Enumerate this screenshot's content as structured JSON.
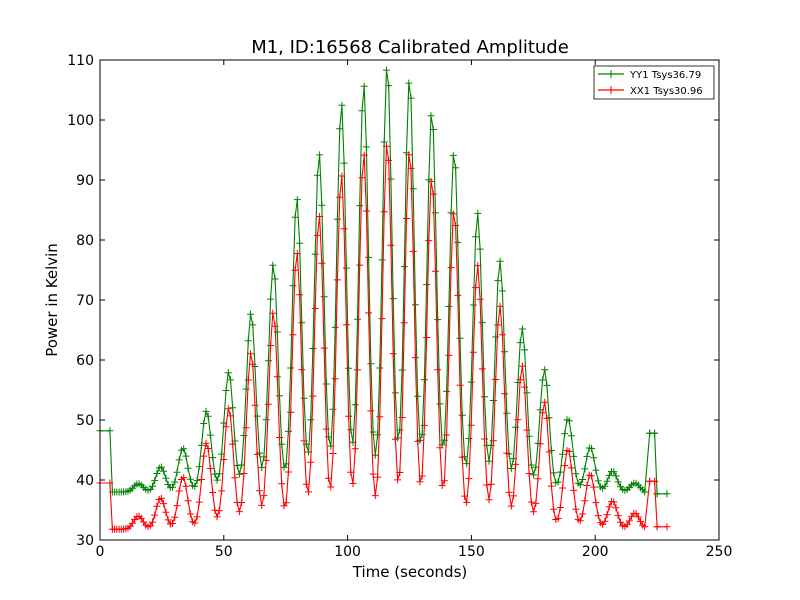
{
  "chart_data": {
    "type": "line",
    "title": "M1, ID:16568 Calibrated Amplitude",
    "xlabel": "Time (seconds)",
    "ylabel": "Power in Kelvin",
    "xlim": [
      0,
      250
    ],
    "ylim": [
      30,
      110
    ],
    "xticks": [
      "0",
      "50",
      "100",
      "150",
      "200",
      "250"
    ],
    "yticks": [
      "30",
      "40",
      "50",
      "60",
      "70",
      "80",
      "90",
      "100",
      "110"
    ],
    "grid": false,
    "legend_position": "top-right",
    "marker": "plus",
    "series": [
      {
        "name": "YY1 Tsys36.79",
        "color": "#008000",
        "baseline": 38,
        "segments": [
          {
            "x": [
              0,
              4
            ],
            "y": [
              48.2,
              48.2
            ]
          },
          {
            "x": [
              4,
              5
            ],
            "y": [
              48.2,
              37.8
            ]
          },
          {
            "x": [
              220,
              222
            ],
            "y": [
              38,
              47.8
            ]
          },
          {
            "x": [
              222,
              224
            ],
            "y": [
              47.8,
              47.8
            ]
          },
          {
            "x": [
              224,
              225
            ],
            "y": [
              47.8,
              37.7
            ]
          },
          {
            "x": [
              225,
              229
            ],
            "y": [
              37.7,
              37.7
            ]
          }
        ],
        "peaks": [
          {
            "x": 15.5,
            "y": 39.4
          },
          {
            "x": 24.5,
            "y": 42.2
          },
          {
            "x": 33.5,
            "y": 45.3
          },
          {
            "x": 43,
            "y": 51.5
          },
          {
            "x": 52,
            "y": 58
          },
          {
            "x": 61,
            "y": 67.8
          },
          {
            "x": 70,
            "y": 76
          },
          {
            "x": 79.5,
            "y": 87
          },
          {
            "x": 88.5,
            "y": 94.5
          },
          {
            "x": 97.5,
            "y": 102.8
          },
          {
            "x": 106.5,
            "y": 106
          },
          {
            "x": 116,
            "y": 109.2
          },
          {
            "x": 125,
            "y": 107
          },
          {
            "x": 134,
            "y": 101.5
          },
          {
            "x": 143,
            "y": 94.8
          },
          {
            "x": 152.5,
            "y": 84.5
          },
          {
            "x": 161.5,
            "y": 76.5
          },
          {
            "x": 170.5,
            "y": 65.2
          },
          {
            "x": 179.5,
            "y": 58.4
          },
          {
            "x": 189,
            "y": 50.3
          },
          {
            "x": 198,
            "y": 45.5
          },
          {
            "x": 207,
            "y": 41.5
          },
          {
            "x": 216,
            "y": 39.5
          }
        ]
      },
      {
        "name": "XX1 Tsys30.96",
        "color": "#ff0000",
        "baseline": 31.8,
        "segments": [
          {
            "x": [
              0,
              4
            ],
            "y": [
              39.5,
              39.5
            ]
          },
          {
            "x": [
              4,
              5
            ],
            "y": [
              39.5,
              31.8
            ]
          },
          {
            "x": [
              220,
              222
            ],
            "y": [
              32.2,
              39.8
            ]
          },
          {
            "x": [
              222,
              224
            ],
            "y": [
              39.8,
              39.8
            ]
          },
          {
            "x": [
              224,
              225
            ],
            "y": [
              39.8,
              32.2
            ]
          },
          {
            "x": [
              225,
              229
            ],
            "y": [
              32.2,
              32.2
            ]
          }
        ],
        "peaks": [
          {
            "x": 15.5,
            "y": 34
          },
          {
            "x": 24.5,
            "y": 37
          },
          {
            "x": 33.5,
            "y": 40.5
          },
          {
            "x": 43,
            "y": 46.2
          },
          {
            "x": 52,
            "y": 52
          },
          {
            "x": 61,
            "y": 61.2
          },
          {
            "x": 70,
            "y": 68
          },
          {
            "x": 79.5,
            "y": 78
          },
          {
            "x": 88.5,
            "y": 84.2
          },
          {
            "x": 97.5,
            "y": 91
          },
          {
            "x": 106.5,
            "y": 94.5
          },
          {
            "x": 116,
            "y": 96.4
          },
          {
            "x": 125,
            "y": 95
          },
          {
            "x": 134,
            "y": 90.5
          },
          {
            "x": 143,
            "y": 85
          },
          {
            "x": 152.5,
            "y": 75.8
          },
          {
            "x": 161.5,
            "y": 69
          },
          {
            "x": 170.5,
            "y": 59
          },
          {
            "x": 179.5,
            "y": 53
          },
          {
            "x": 189,
            "y": 45.2
          },
          {
            "x": 198,
            "y": 41
          },
          {
            "x": 207,
            "y": 36.5
          },
          {
            "x": 216,
            "y": 34.5
          }
        ]
      }
    ]
  }
}
